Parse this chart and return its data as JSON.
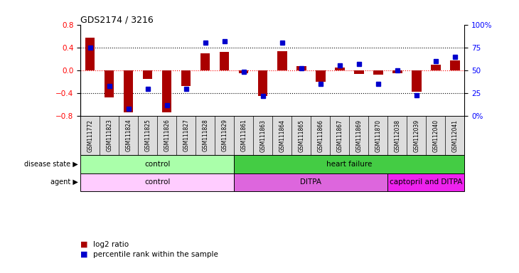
{
  "title": "GDS2174 / 3216",
  "samples": [
    "GSM111772",
    "GSM111823",
    "GSM111824",
    "GSM111825",
    "GSM111826",
    "GSM111827",
    "GSM111828",
    "GSM111829",
    "GSM111861",
    "GSM111863",
    "GSM111864",
    "GSM111865",
    "GSM111866",
    "GSM111867",
    "GSM111869",
    "GSM111870",
    "GSM112038",
    "GSM112039",
    "GSM112040",
    "GSM112041"
  ],
  "log2_ratio": [
    0.57,
    -0.48,
    -0.73,
    -0.15,
    -0.73,
    -0.27,
    0.3,
    0.32,
    -0.05,
    -0.45,
    0.33,
    0.07,
    -0.2,
    0.05,
    -0.07,
    -0.08,
    -0.05,
    -0.37,
    0.1,
    0.17
  ],
  "percentile": [
    75,
    33,
    8,
    30,
    12,
    30,
    80,
    82,
    48,
    22,
    80,
    52,
    35,
    55,
    57,
    35,
    50,
    23,
    60,
    65
  ],
  "disease_state_groups": [
    {
      "label": "control",
      "start": 0,
      "end": 8,
      "color": "#aaffaa"
    },
    {
      "label": "heart failure",
      "start": 8,
      "end": 20,
      "color": "#44cc44"
    }
  ],
  "agent_groups": [
    {
      "label": "control",
      "start": 0,
      "end": 8,
      "color": "#ffccff"
    },
    {
      "label": "DITPA",
      "start": 8,
      "end": 16,
      "color": "#dd66dd"
    },
    {
      "label": "captopril and DITPA",
      "start": 16,
      "end": 20,
      "color": "#ee22ee"
    }
  ],
  "bar_color": "#aa0000",
  "dot_color": "#0000cc",
  "ylim": [
    -0.8,
    0.8
  ],
  "left_yticks": [
    -0.8,
    -0.4,
    0.0,
    0.4,
    0.8
  ],
  "right_pct_ticks": [
    0,
    25,
    50,
    75,
    100
  ],
  "right_pct_labels": [
    "0%",
    "25",
    "50",
    "75",
    "100%"
  ],
  "dotted_lines": [
    -0.4,
    0.4
  ],
  "tick_gray": "#cccccc",
  "background_color": "#ffffff"
}
